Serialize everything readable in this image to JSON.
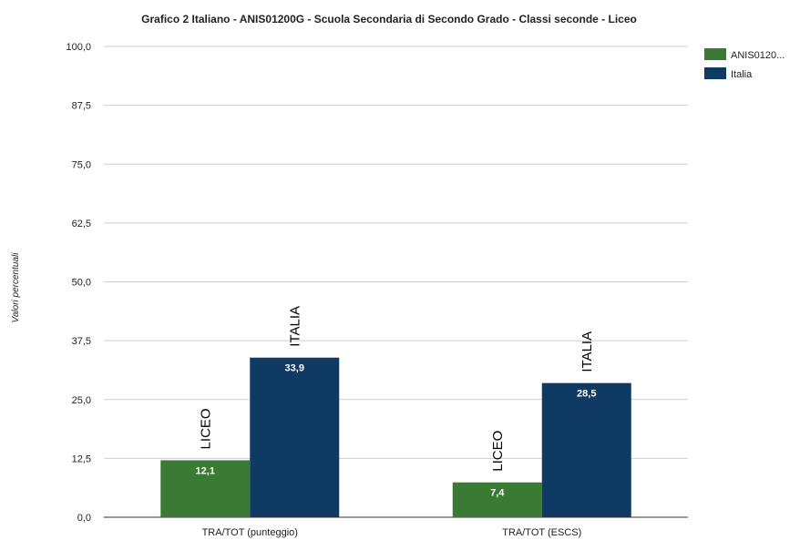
{
  "chart_data": {
    "type": "bar",
    "title": "Grafico 2 Italiano - ANIS01200G - Scuola Secondaria di Secondo Grado - Classi seconde - Liceo",
    "ylabel": "Valori percentuali",
    "xlabel": "",
    "ylim": [
      0,
      100
    ],
    "yticks": [
      "0,0",
      "12,5",
      "25,0",
      "37,5",
      "50,0",
      "62,5",
      "75,0",
      "87,5",
      "100,0"
    ],
    "categories": [
      "TRA/TOT (punteggio)",
      "TRA/TOT (ESCS)"
    ],
    "series": [
      {
        "name": "ANIS0120...",
        "values": [
          12.1,
          7.4
        ],
        "labels": [
          "12,1",
          "7,4"
        ],
        "color": "#3a7a35",
        "annotation": "LICEO"
      },
      {
        "name": "Italia",
        "values": [
          33.9,
          28.5
        ],
        "labels": [
          "33,9",
          "28,5"
        ],
        "color": "#0f3a63",
        "annotation": "ITALIA"
      }
    ],
    "legend": "top-right",
    "grid": true
  }
}
